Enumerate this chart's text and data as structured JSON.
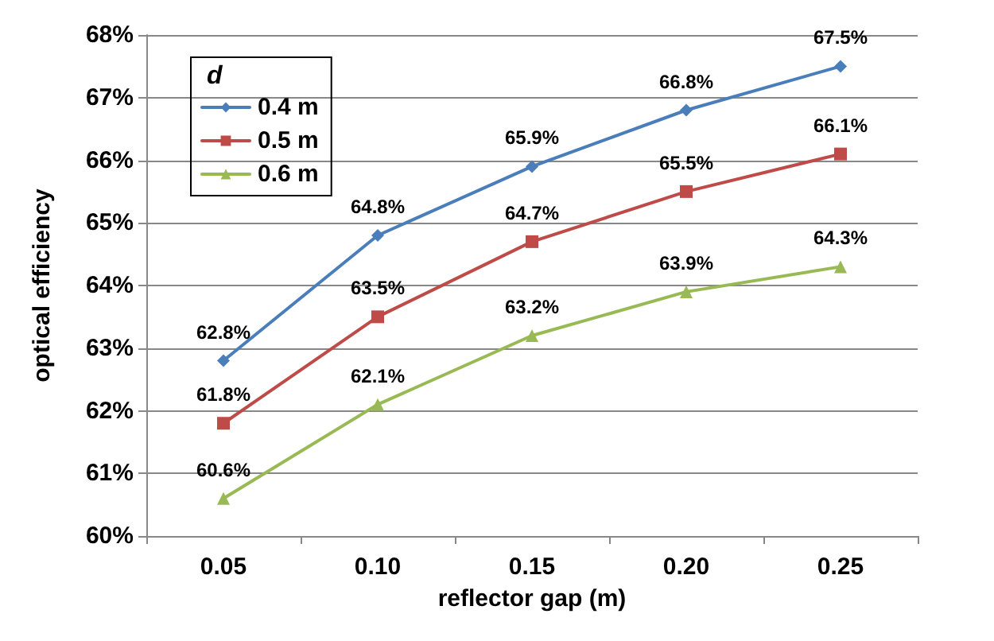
{
  "chart_data": {
    "type": "line",
    "xlabel": "reflector gap (m)",
    "ylabel": "optical efficiency",
    "legend_title": "d",
    "categories": [
      "0.05",
      "0.10",
      "0.15",
      "0.20",
      "0.25"
    ],
    "series": [
      {
        "name": "0.4 m",
        "color": "#4a7ebb",
        "marker": "diamond",
        "values": [
          62.8,
          64.8,
          65.9,
          66.8,
          67.5
        ],
        "value_labels": [
          "62.8%",
          "64.8%",
          "65.9%",
          "66.8%",
          "67.5%"
        ]
      },
      {
        "name": "0.5 m",
        "color": "#be4b48",
        "marker": "square",
        "values": [
          61.8,
          63.5,
          64.7,
          65.5,
          66.1
        ],
        "value_labels": [
          "61.8%",
          "63.5%",
          "64.7%",
          "65.5%",
          "66.1%"
        ]
      },
      {
        "name": "0.6 m",
        "color": "#98b954",
        "marker": "triangle",
        "values": [
          60.6,
          62.1,
          63.2,
          63.9,
          64.3
        ],
        "value_labels": [
          "60.6%",
          "62.1%",
          "63.2%",
          "63.9%",
          "64.3%"
        ]
      }
    ],
    "ylim": [
      60,
      68
    ],
    "yticks": [
      {
        "value": 60,
        "label": "60%"
      },
      {
        "value": 61,
        "label": "61%"
      },
      {
        "value": 62,
        "label": "62%"
      },
      {
        "value": 63,
        "label": "63%"
      },
      {
        "value": 64,
        "label": "64%"
      },
      {
        "value": 65,
        "label": "65%"
      },
      {
        "value": 66,
        "label": "66%"
      },
      {
        "value": 67,
        "label": "67%"
      },
      {
        "value": 68,
        "label": "68%"
      }
    ],
    "grid": "y",
    "legend": "top left",
    "line_style": "solid"
  }
}
